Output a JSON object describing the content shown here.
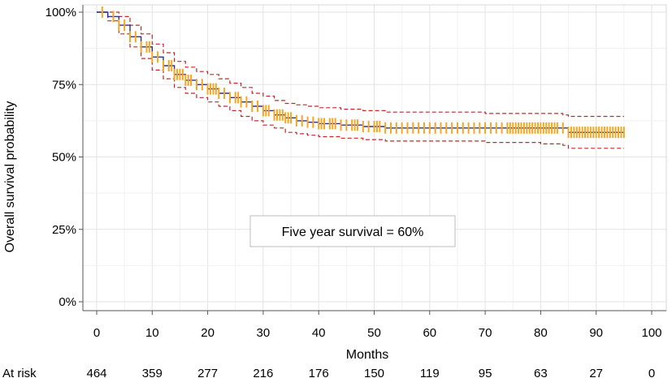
{
  "chart_data": {
    "type": "line",
    "xlabel": "Months",
    "ylabel": "Overall survival probability",
    "xlim": [
      0,
      100
    ],
    "ylim": [
      0,
      1
    ],
    "x_ticks": [
      "0",
      "10",
      "20",
      "30",
      "40",
      "50",
      "60",
      "70",
      "80",
      "90",
      "100"
    ],
    "y_ticks": [
      "0%",
      "25%",
      "50%",
      "75%",
      "100%"
    ],
    "grid": true,
    "annotation": "Five year survival = 60%",
    "at_risk": {
      "label": "At risk",
      "times": [
        0,
        10,
        20,
        30,
        40,
        50,
        60,
        70,
        80,
        90,
        100
      ],
      "counts": [
        "464",
        "359",
        "277",
        "216",
        "176",
        "150",
        "119",
        "95",
        "63",
        "27",
        "0"
      ]
    },
    "series": [
      {
        "role": "estimate",
        "style": "solid",
        "points": [
          [
            0,
            1.0
          ],
          [
            2,
            0.985
          ],
          [
            4,
            0.955
          ],
          [
            6,
            0.915
          ],
          [
            8,
            0.88
          ],
          [
            10,
            0.845
          ],
          [
            12,
            0.815
          ],
          [
            14,
            0.785
          ],
          [
            16,
            0.765
          ],
          [
            18,
            0.75
          ],
          [
            20,
            0.735
          ],
          [
            22,
            0.72
          ],
          [
            24,
            0.705
          ],
          [
            26,
            0.69
          ],
          [
            28,
            0.675
          ],
          [
            30,
            0.66
          ],
          [
            32,
            0.645
          ],
          [
            34,
            0.635
          ],
          [
            36,
            0.625
          ],
          [
            38,
            0.62
          ],
          [
            40,
            0.615
          ],
          [
            44,
            0.61
          ],
          [
            48,
            0.605
          ],
          [
            52,
            0.6
          ],
          [
            60,
            0.6
          ],
          [
            70,
            0.6
          ],
          [
            80,
            0.6
          ],
          [
            84,
            0.6
          ],
          [
            85,
            0.585
          ],
          [
            95,
            0.585
          ]
        ]
      },
      {
        "role": "upper-ci",
        "style": "dashed",
        "points": [
          [
            0,
            1.0
          ],
          [
            2,
            1.0
          ],
          [
            4,
            0.985
          ],
          [
            6,
            0.955
          ],
          [
            8,
            0.925
          ],
          [
            10,
            0.89
          ],
          [
            12,
            0.86
          ],
          [
            14,
            0.83
          ],
          [
            16,
            0.81
          ],
          [
            18,
            0.795
          ],
          [
            20,
            0.785
          ],
          [
            22,
            0.77
          ],
          [
            24,
            0.755
          ],
          [
            26,
            0.74
          ],
          [
            28,
            0.72
          ],
          [
            30,
            0.71
          ],
          [
            32,
            0.695
          ],
          [
            34,
            0.685
          ],
          [
            36,
            0.68
          ],
          [
            38,
            0.675
          ],
          [
            40,
            0.67
          ],
          [
            44,
            0.665
          ],
          [
            48,
            0.66
          ],
          [
            52,
            0.655
          ],
          [
            60,
            0.655
          ],
          [
            70,
            0.65
          ],
          [
            80,
            0.65
          ],
          [
            84,
            0.645
          ],
          [
            85,
            0.64
          ],
          [
            95,
            0.64
          ]
        ]
      },
      {
        "role": "lower-ci",
        "style": "dashed",
        "points": [
          [
            0,
            1.0
          ],
          [
            2,
            0.97
          ],
          [
            4,
            0.925
          ],
          [
            6,
            0.88
          ],
          [
            8,
            0.84
          ],
          [
            10,
            0.8
          ],
          [
            12,
            0.77
          ],
          [
            14,
            0.74
          ],
          [
            16,
            0.72
          ],
          [
            18,
            0.705
          ],
          [
            20,
            0.69
          ],
          [
            22,
            0.675
          ],
          [
            24,
            0.66
          ],
          [
            26,
            0.64
          ],
          [
            28,
            0.625
          ],
          [
            30,
            0.61
          ],
          [
            32,
            0.6
          ],
          [
            34,
            0.585
          ],
          [
            36,
            0.58
          ],
          [
            38,
            0.575
          ],
          [
            40,
            0.57
          ],
          [
            44,
            0.565
          ],
          [
            48,
            0.56
          ],
          [
            52,
            0.555
          ],
          [
            60,
            0.555
          ],
          [
            70,
            0.55
          ],
          [
            80,
            0.545
          ],
          [
            84,
            0.54
          ],
          [
            85,
            0.53
          ],
          [
            95,
            0.53
          ]
        ]
      }
    ],
    "censor_times": [
      1,
      3,
      4,
      5,
      6,
      7,
      8,
      9,
      9.5,
      10,
      11,
      12,
      13,
      13.5,
      14,
      14.5,
      15,
      15.5,
      16,
      16.5,
      17,
      18,
      19,
      20,
      20.5,
      21,
      21.5,
      22,
      23,
      24,
      25,
      25.5,
      26,
      27,
      28,
      29,
      30,
      30.5,
      31,
      32,
      32.5,
      33,
      33.5,
      34,
      34.5,
      35,
      36,
      37,
      38,
      39,
      40,
      40.5,
      41,
      42,
      42.5,
      43,
      44,
      45,
      46,
      46.5,
      47,
      48,
      49,
      50,
      50.5,
      51,
      52,
      53,
      54,
      55,
      56,
      57,
      58,
      59,
      60,
      61,
      62,
      63,
      64,
      65,
      66,
      67,
      68,
      69,
      70,
      71,
      72,
      73,
      74,
      74.5,
      75,
      75.5,
      76,
      76.5,
      77,
      77.5,
      78,
      78.5,
      79,
      79.5,
      80,
      80.5,
      81,
      81.5,
      82,
      82.5,
      83,
      84,
      85,
      85.5,
      86,
      86.5,
      87,
      87.5,
      88,
      88.5,
      89,
      89.5,
      90,
      90.5,
      91,
      91.5,
      92,
      92.5,
      93,
      93.5,
      94,
      94.5,
      95
    ],
    "colors": {
      "estimate": "#2b2f8f",
      "ci": "#c0282b",
      "censor": "#f5a623",
      "grid": "#e3e3e3"
    }
  }
}
